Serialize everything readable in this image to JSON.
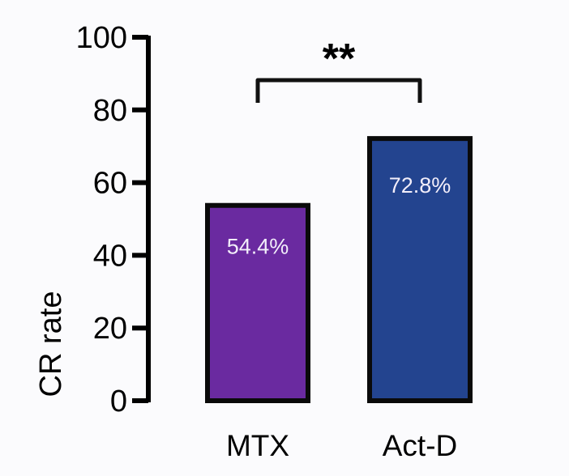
{
  "chart_data": {
    "type": "bar",
    "title": "",
    "xlabel": "",
    "ylabel": "CR rate",
    "ylim": [
      0,
      100
    ],
    "yticks": [
      0,
      20,
      40,
      60,
      80,
      100
    ],
    "categories": [
      "MTX",
      "Act-D"
    ],
    "values": [
      54.4,
      72.8
    ],
    "data_labels": [
      "54.4%",
      "72.8%"
    ],
    "colors": [
      "#6a2aa0",
      "#23448f"
    ],
    "grid": false,
    "annotations": [
      {
        "type": "significance-bracket",
        "between": [
          "MTX",
          "Act-D"
        ],
        "label": "**"
      }
    ]
  }
}
